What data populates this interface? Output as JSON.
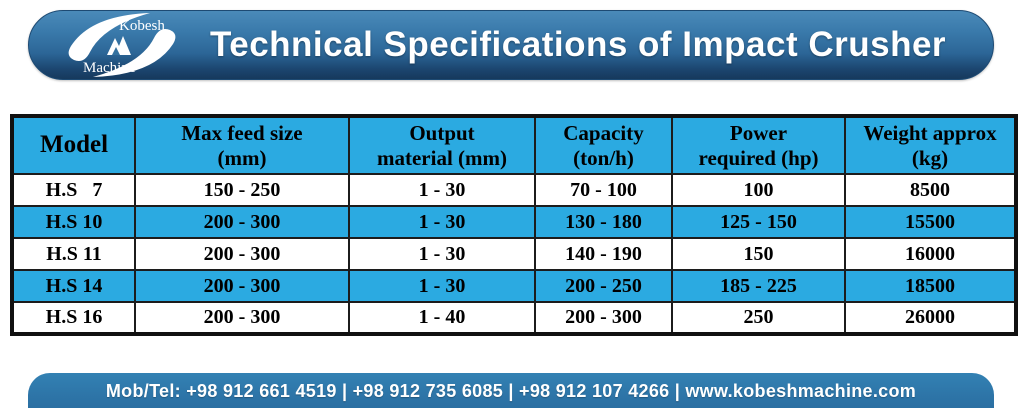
{
  "header": {
    "title": "Technical Specifications of Impact Crusher",
    "logo": {
      "line1": "Kobesh",
      "line2": "Machine"
    }
  },
  "table": {
    "columns": [
      {
        "label": "Model"
      },
      {
        "label": "Max feed size\n(mm)"
      },
      {
        "label": "Output\nmaterial (mm)"
      },
      {
        "label": "Capacity\n(ton/h)"
      },
      {
        "label": "Power\nrequired (hp)"
      },
      {
        "label": "Weight approx\n(kg)"
      }
    ],
    "rows": [
      [
        "H.S   7",
        "150 - 250",
        "1 - 30",
        "70 - 100",
        "100",
        "8500"
      ],
      [
        "H.S 10",
        "200 - 300",
        "1 - 30",
        "130 - 180",
        "125 - 150",
        "15500"
      ],
      [
        "H.S 11",
        "200 - 300",
        "1 - 30",
        "140 - 190",
        "150",
        "16000"
      ],
      [
        "H.S 14",
        "200 - 300",
        "1 - 30",
        "200 - 250",
        "185 - 225",
        "18500"
      ],
      [
        "H.S 16",
        "200 - 300",
        "1 - 40",
        "200 - 300",
        "250",
        "26000"
      ]
    ]
  },
  "footer": {
    "contact": "Mob/Tel: +98 912 661 4519 | +98 912 735 6085 | +98 912 107 4266 | www.kobeshmachine.com"
  },
  "colors": {
    "row_stripe": "#2baae1",
    "header_gradient_top": "#4a8ab9",
    "header_gradient_bottom": "#16395c",
    "footer_blue": "#2d74a7",
    "text_on_blue": "#ffffff",
    "table_text": "#000000"
  }
}
